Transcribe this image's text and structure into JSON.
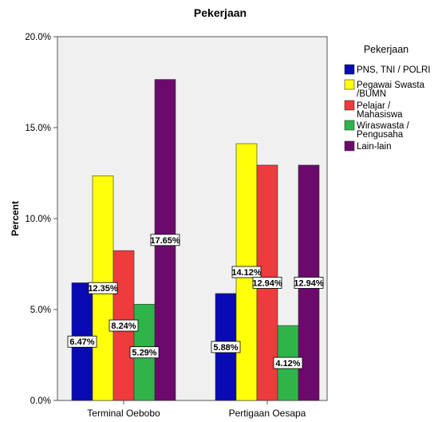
{
  "chart_data": {
    "type": "bar",
    "title": "Pekerjaan",
    "xlabel": "",
    "ylabel": "Percent",
    "ylim": [
      0,
      20
    ],
    "yticks": [
      "0.0%",
      "5.0%",
      "10.0%",
      "15.0%",
      "20.0%"
    ],
    "categories": [
      "Terminal Oebobo",
      "Pertigaan Oesapa"
    ],
    "legend_title": "Pekerjaan",
    "legend_position": "right",
    "grid": false,
    "series": [
      {
        "name": "PNS, TNI / POLRI",
        "color": "#0a0ab4",
        "values": [
          6.47,
          5.88
        ],
        "labels": [
          "6.47%",
          "5.88%"
        ]
      },
      {
        "name": "Pegawai Swasta /BUMN",
        "color": "#ffff0a",
        "values": [
          12.35,
          14.12
        ],
        "labels": [
          "12.35%",
          "14.12%"
        ]
      },
      {
        "name": "Pelajar / Mahasiswa",
        "color": "#ee3b3b",
        "values": [
          8.24,
          12.94
        ],
        "labels": [
          "8.24%",
          "12.94%"
        ]
      },
      {
        "name": "Wiraswasta / Pengusaha",
        "color": "#2fb44a",
        "values": [
          5.29,
          4.12
        ],
        "labels": [
          "5.29%",
          "4.12%"
        ]
      },
      {
        "name": "Lain-lain",
        "color": "#6b0a6b",
        "values": [
          17.65,
          12.94
        ],
        "labels": [
          "17.65%",
          "12.94%"
        ]
      }
    ]
  }
}
